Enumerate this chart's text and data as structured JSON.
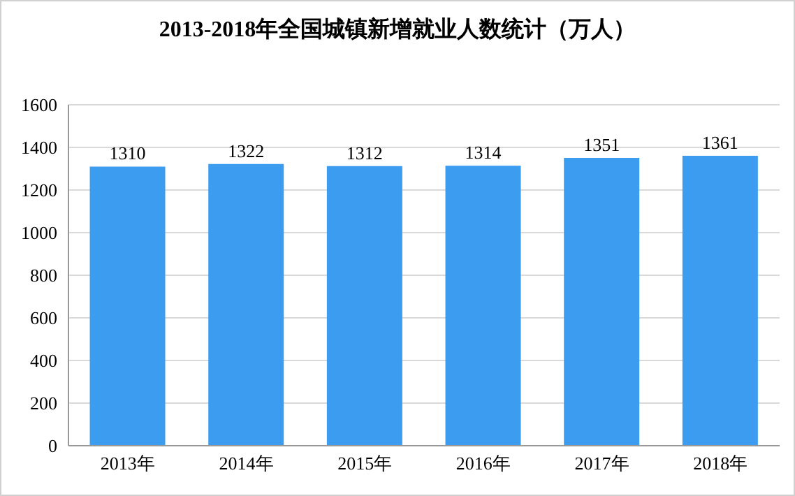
{
  "chart_data": {
    "type": "bar",
    "title": "2013-2018年全国城镇新增就业人数统计（万人）",
    "categories": [
      "2013年",
      "2014年",
      "2015年",
      "2016年",
      "2017年",
      "2018年"
    ],
    "values": [
      1310,
      1322,
      1312,
      1314,
      1351,
      1361
    ],
    "color": "#3c9cf0",
    "ylim": [
      0,
      1600
    ],
    "yticks": [
      0,
      200,
      400,
      600,
      800,
      1000,
      1200,
      1400,
      1600
    ],
    "grid": "y",
    "data_labels": true
  }
}
